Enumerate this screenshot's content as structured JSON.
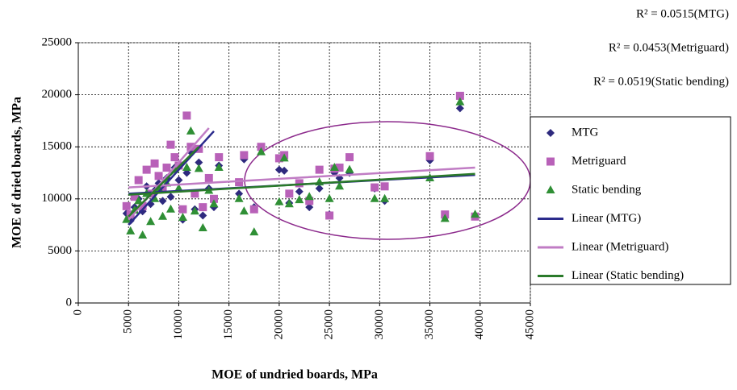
{
  "chart_data": {
    "type": "scatter",
    "x_label": "MOE of undried boards, MPa",
    "y_label": "MOE of dried boards, MPa",
    "annotations": [
      "R² = 0.0515(MTG)",
      "R² = 0.0453(Metriguard)",
      "R² = 0.0519(Static bending)"
    ],
    "xlim": [
      0,
      45000
    ],
    "xticks": [
      0,
      5000,
      10000,
      15000,
      20000,
      25000,
      30000,
      35000,
      40000,
      45000
    ],
    "ylim": [
      0,
      25000
    ],
    "yticks": [
      0,
      5000,
      10000,
      15000,
      20000,
      25000
    ],
    "grid": true,
    "legend": "right",
    "series": [
      {
        "name": "MTG",
        "type": "scatter",
        "marker": "diamond",
        "color": "#2e2a7e",
        "x": [
          4800,
          5200,
          5600,
          6000,
          6400,
          6800,
          7200,
          7600,
          8000,
          8400,
          8800,
          9200,
          9600,
          10000,
          10400,
          10800,
          11200,
          11600,
          12000,
          12400,
          13000,
          13500,
          14000,
          16000,
          16500,
          17500,
          18200,
          20000,
          20500,
          21000,
          22000,
          23000,
          24000,
          25000,
          25500,
          26000,
          27000,
          29500,
          30500,
          35000,
          36500,
          38000,
          39500
        ],
        "values": [
          8600,
          7900,
          9200,
          10000,
          8800,
          11200,
          9500,
          10800,
          11500,
          9800,
          12000,
          10200,
          13000,
          11800,
          8000,
          12500,
          14500,
          9000,
          13500,
          8400,
          11000,
          9200,
          13200,
          10500,
          13800,
          9200,
          14800,
          12800,
          12700,
          9600,
          10700,
          9200,
          11000,
          8500,
          12500,
          12000,
          12500,
          11000,
          9800,
          13700,
          8200,
          18700,
          8300
        ]
      },
      {
        "name": "Metriguard",
        "type": "scatter",
        "marker": "square",
        "color": "#b861b8",
        "x": [
          4800,
          5200,
          5600,
          6000,
          6400,
          6800,
          7200,
          7600,
          8000,
          8400,
          8800,
          9200,
          9600,
          10000,
          10400,
          10800,
          11200,
          11600,
          12000,
          12400,
          13000,
          13500,
          14000,
          16000,
          16500,
          17500,
          18200,
          20000,
          20500,
          21000,
          22000,
          23000,
          24000,
          25000,
          25500,
          26000,
          27000,
          29500,
          30500,
          35000,
          36500,
          38000,
          39500
        ],
        "values": [
          9300,
          8500,
          10200,
          11800,
          9300,
          12800,
          10500,
          13400,
          12200,
          11000,
          13000,
          15200,
          14000,
          13200,
          9000,
          18000,
          15000,
          10500,
          14800,
          9200,
          12000,
          10000,
          14000,
          11600,
          14200,
          9000,
          15000,
          13900,
          14200,
          10500,
          11500,
          9800,
          12800,
          8400,
          12900,
          13000,
          14000,
          11100,
          11200,
          14100,
          8500,
          19900,
          8300
        ]
      },
      {
        "name": "Static bending",
        "type": "scatter",
        "marker": "triangle",
        "color": "#2f8f35",
        "x": [
          4800,
          5200,
          5600,
          6000,
          6400,
          6800,
          7200,
          7600,
          8000,
          8400,
          8800,
          9200,
          9600,
          10000,
          10400,
          10800,
          11200,
          11600,
          12000,
          12400,
          13000,
          13500,
          14000,
          16000,
          16500,
          17500,
          18200,
          20000,
          20500,
          21000,
          22000,
          23000,
          24000,
          25000,
          25500,
          26000,
          27000,
          29500,
          30500,
          35000,
          36500,
          38000,
          39500
        ],
        "values": [
          8000,
          6900,
          8900,
          9800,
          6500,
          10500,
          7800,
          10000,
          11000,
          8300,
          11500,
          9000,
          12800,
          11000,
          8200,
          13000,
          16500,
          8800,
          12900,
          7200,
          10800,
          9500,
          13000,
          10000,
          8800,
          6800,
          14500,
          9700,
          13900,
          9500,
          9900,
          10200,
          11600,
          10000,
          13000,
          11200,
          12800,
          10000,
          10000,
          12000,
          8100,
          19300,
          8500
        ]
      },
      {
        "name": "Linear (MTG)",
        "type": "line",
        "color": "#2b2b8c",
        "x": [
          5000,
          13500,
          null,
          5000,
          39500
        ],
        "values": [
          7500,
          16500,
          null,
          10500,
          12300
        ]
      },
      {
        "name": "Linear (Metriguard)",
        "type": "line",
        "color": "#c07cc4",
        "x": [
          5000,
          13000,
          null,
          5000,
          39500
        ],
        "values": [
          8000,
          16800,
          null,
          11100,
          13000
        ]
      },
      {
        "name": "Linear (Static bending)",
        "type": "line",
        "color": "#2a7a2a",
        "x": [
          5000,
          12000,
          null,
          5000,
          39500
        ],
        "values": [
          8300,
          15000,
          null,
          10400,
          12400
        ]
      }
    ]
  }
}
